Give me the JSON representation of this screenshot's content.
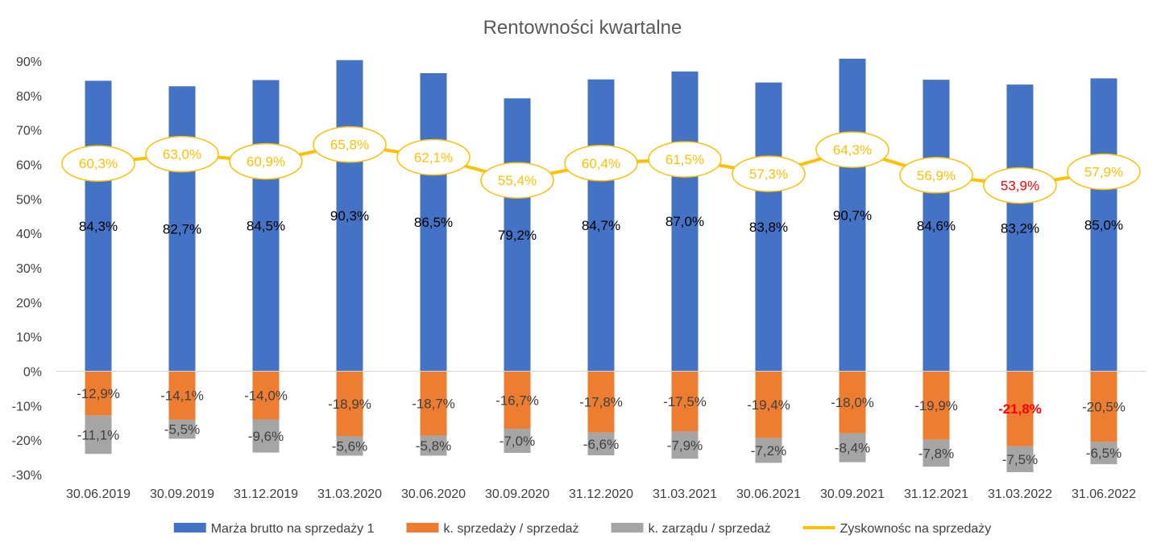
{
  "chart_data": {
    "type": "bar",
    "title": "Rentowności kwartalne",
    "categories": [
      "30.06.2019",
      "30.09.2019",
      "31.12.2019",
      "31.03.2020",
      "30.06.2020",
      "30.09.2020",
      "31.12.2020",
      "31.03.2021",
      "30.06.2021",
      "30.09.2021",
      "31.12.2021",
      "31.03.2022",
      "31.06.2022"
    ],
    "ylim": [
      -30,
      90
    ],
    "yticks": [
      "90%",
      "80%",
      "70%",
      "60%",
      "50%",
      "40%",
      "30%",
      "20%",
      "10%",
      "0%",
      "-10%",
      "-20%",
      "-30%"
    ],
    "grid": false,
    "legend_position": "bottom",
    "series": [
      {
        "name": "Marża brutto na sprzedaży 1",
        "kind": "bar",
        "color": "#4472c4",
        "values": [
          84.3,
          82.7,
          84.5,
          90.3,
          86.5,
          79.2,
          84.7,
          87.0,
          83.8,
          90.7,
          84.6,
          83.2,
          85.0
        ],
        "labels": [
          "84,3%",
          "82,7%",
          "84,5%",
          "90,3%",
          "86,5%",
          "79,2%",
          "84,7%",
          "87,0%",
          "83,8%",
          "90,7%",
          "84,6%",
          "83,2%",
          "85,0%"
        ]
      },
      {
        "name": "k. sprzedaży / sprzedaż",
        "kind": "stacked-bar",
        "color": "#ed7d31",
        "values": [
          -12.9,
          -14.1,
          -14.0,
          -18.9,
          -18.7,
          -16.7,
          -17.8,
          -17.5,
          -19.4,
          -18.0,
          -19.9,
          -21.8,
          -20.5
        ],
        "labels": [
          "-12,9%",
          "-14,1%",
          "-14,0%",
          "-18,9%",
          "-18,7%",
          "-16,7%",
          "-17,8%",
          "-17,5%",
          "-19,4%",
          "-18,0%",
          "-19,9%",
          "-21,8%",
          "-20,5%"
        ],
        "highlight_index": 11
      },
      {
        "name": "k. zarządu / sprzedaż",
        "kind": "stacked-bar",
        "color": "#a5a5a5",
        "values": [
          -11.1,
          -5.5,
          -9.6,
          -5.6,
          -5.8,
          -7.0,
          -6.6,
          -7.9,
          -7.2,
          -8.4,
          -7.8,
          -7.5,
          -6.5
        ],
        "labels": [
          "-11,1%",
          "-5,5%",
          "-9,6%",
          "-5,6%",
          "-5,8%",
          "-7,0%",
          "-6,6%",
          "-7,9%",
          "-7,2%",
          "-8,4%",
          "-7,8%",
          "-7,5%",
          "-6,5%"
        ]
      },
      {
        "name": "Zyskownośc na sprzedaży",
        "kind": "line",
        "color": "#ffc000",
        "values": [
          60.3,
          63.0,
          60.9,
          65.8,
          62.1,
          55.4,
          60.4,
          61.5,
          57.3,
          64.3,
          56.9,
          53.9,
          57.9
        ],
        "labels": [
          "60,3%",
          "63,0%",
          "60,9%",
          "65,8%",
          "62,1%",
          "55,4%",
          "60,4%",
          "61,5%",
          "57,3%",
          "64,3%",
          "56,9%",
          "53,9%",
          "57,9%"
        ],
        "highlight_index": 11
      }
    ],
    "highlight_color": "#ff0000"
  }
}
